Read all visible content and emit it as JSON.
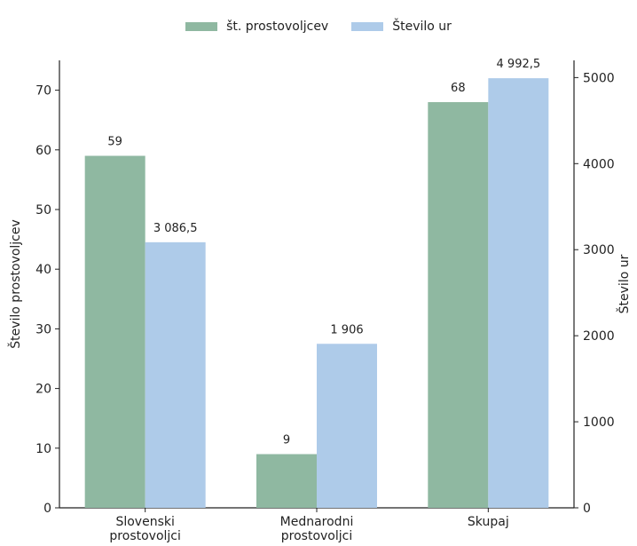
{
  "chart_data": {
    "type": "bar",
    "categories": [
      [
        "Slovenski",
        "prostovoljci"
      ],
      [
        "Mednarodni",
        "prostovoljci"
      ],
      [
        "Skupaj"
      ]
    ],
    "series": [
      {
        "name": "št. prostovoljcev",
        "axis": "left",
        "color": "#8fb8a1",
        "values": [
          59,
          9,
          68
        ],
        "labels": [
          "59",
          "9",
          "68"
        ]
      },
      {
        "name": "Število ur",
        "axis": "right",
        "color": "#aecbe9",
        "values": [
          3086.5,
          1906,
          4992.5
        ],
        "labels": [
          "3 086,5",
          "1 906",
          "4 992,5"
        ]
      }
    ],
    "ylabel_left": "Število prostovoljcev",
    "ylabel_right": "Število ur",
    "ylim_left": [
      0,
      75
    ],
    "ylim_right": [
      0,
      5200
    ],
    "yticks_left": [
      0,
      10,
      20,
      30,
      40,
      50,
      60,
      70
    ],
    "yticks_right": [
      0,
      1000,
      2000,
      3000,
      4000,
      5000
    ],
    "legend_position": "top-center",
    "grid": false
  }
}
